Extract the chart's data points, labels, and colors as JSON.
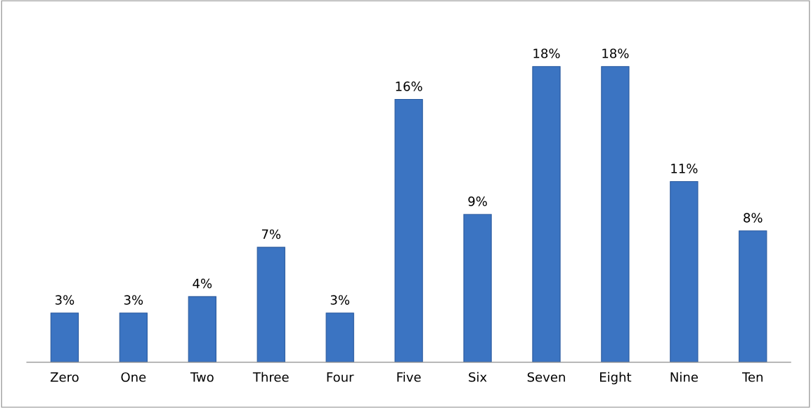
{
  "chart_data": {
    "type": "bar",
    "categories": [
      "Zero",
      "One",
      "Two",
      "Three",
      "Four",
      "Five",
      "Six",
      "Seven",
      "Eight",
      "Nine",
      "Ten"
    ],
    "values": [
      3,
      3,
      4,
      7,
      3,
      16,
      9,
      18,
      18,
      11,
      8
    ],
    "value_labels": [
      "3%",
      "3%",
      "4%",
      "7%",
      "3%",
      "16%",
      "9%",
      "18%",
      "18%",
      "11%",
      "8%"
    ],
    "color": "#3b74c2"
  }
}
